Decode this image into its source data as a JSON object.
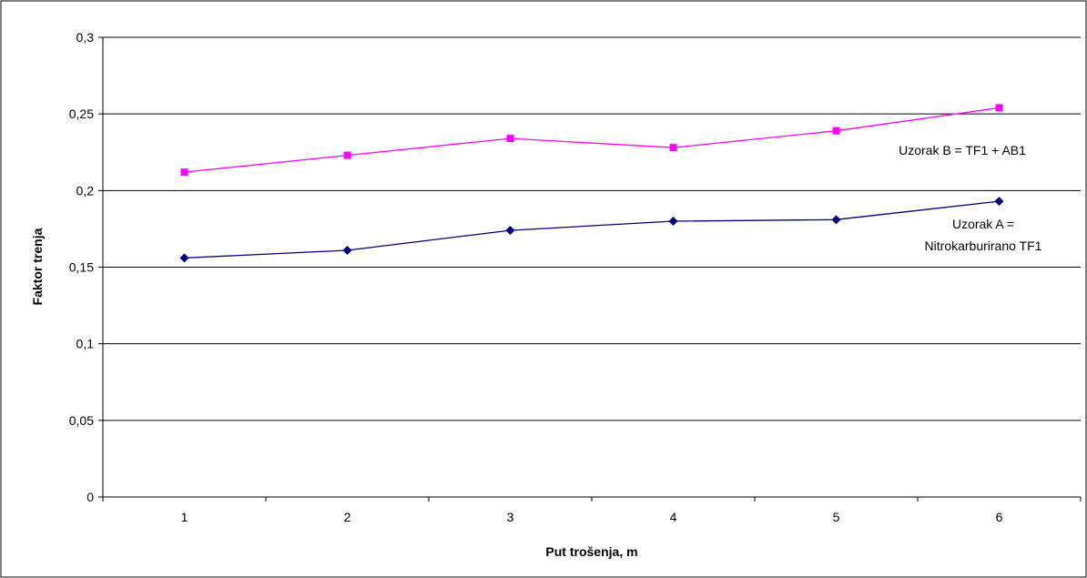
{
  "chart_data": {
    "type": "line",
    "xlabel": "Put trošenja, m",
    "ylabel": "Faktor trenja",
    "categories": [
      "1",
      "2",
      "3",
      "4",
      "5",
      "6"
    ],
    "y_ticks": [
      "0",
      "0,05",
      "0,1",
      "0,15",
      "0,2",
      "0,25",
      "0,3"
    ],
    "ylim": [
      0,
      0.3
    ],
    "grid": true,
    "legend": "inline",
    "series": [
      {
        "name": "Uzorak B =  TF1 + AB1",
        "label_lines": [
          "Uzorak B =  TF1 + AB1"
        ],
        "color": "#ff00ff",
        "marker": "square",
        "values": [
          0.212,
          0.223,
          0.234,
          0.228,
          0.239,
          0.254
        ]
      },
      {
        "name": "Uzorak A = Nitrokarburirano TF1",
        "label_lines": [
          "Uzorak A =",
          "Nitrokarburirano TF1"
        ],
        "color": "#000080",
        "marker": "diamond",
        "values": [
          0.156,
          0.161,
          0.174,
          0.18,
          0.181,
          0.193
        ]
      }
    ]
  }
}
